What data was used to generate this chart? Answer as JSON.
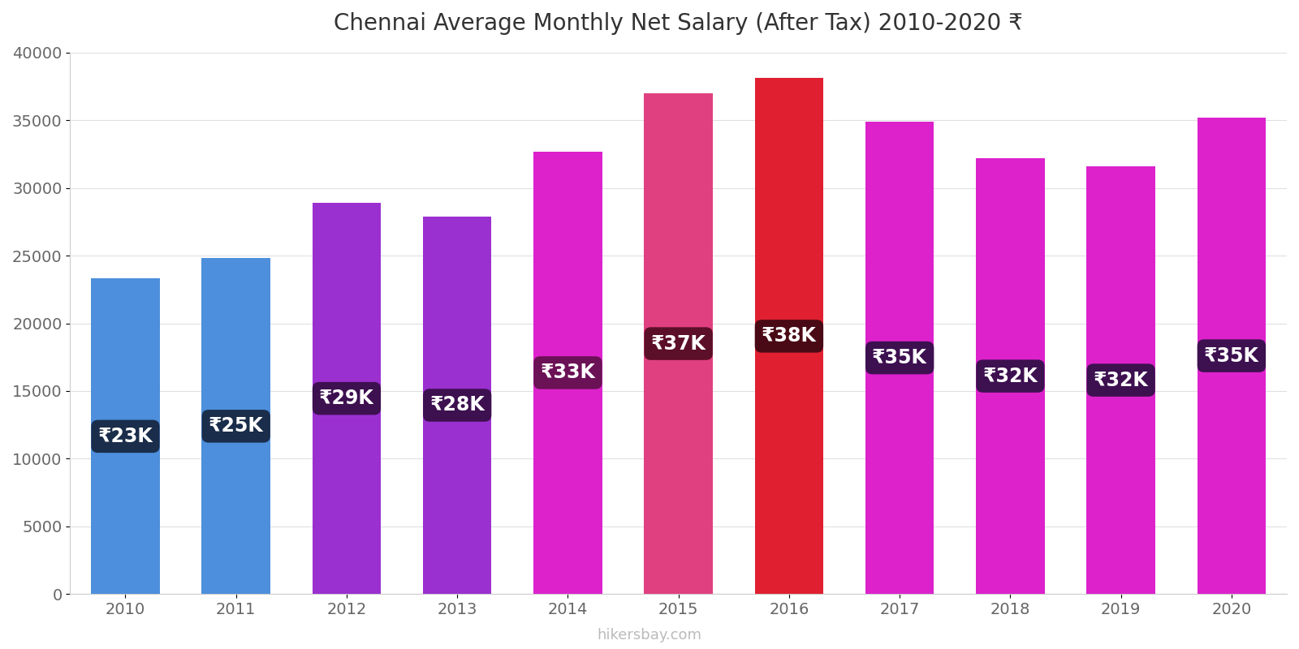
{
  "years": [
    2010,
    2011,
    2012,
    2013,
    2014,
    2015,
    2016,
    2017,
    2018,
    2019,
    2020
  ],
  "values": [
    23300,
    24800,
    28900,
    27900,
    32700,
    37000,
    38100,
    34900,
    32200,
    31600,
    35200
  ],
  "labels": [
    "₹23K",
    "₹25K",
    "₹29K",
    "₹28K",
    "₹33K",
    "₹37K",
    "₹38K",
    "₹35K",
    "₹32K",
    "₹32K",
    "₹35K"
  ],
  "bar_colors": [
    "#4d8fdc",
    "#4d8fdc",
    "#9b30d0",
    "#9b30d0",
    "#dd22cc",
    "#e04080",
    "#e02030",
    "#dd22cc",
    "#dd22cc",
    "#dd22cc",
    "#dd22cc"
  ],
  "label_bg_colors": [
    "#1a2d4a",
    "#1a2d4a",
    "#3d1050",
    "#3d1050",
    "#6b1155",
    "#5c0f28",
    "#4a0a15",
    "#3d1050",
    "#3d1050",
    "#3d1050",
    "#3d1050"
  ],
  "title": "Chennai Average Monthly Net Salary (After Tax) 2010-2020 ₹",
  "ylim": [
    0,
    40000
  ],
  "yticks": [
    0,
    5000,
    10000,
    15000,
    20000,
    25000,
    30000,
    35000,
    40000
  ],
  "background_color": "#ffffff",
  "watermark": "hikersbay.com",
  "title_fontsize": 20,
  "label_fontsize": 17,
  "tick_fontsize": 14,
  "bar_width": 0.62
}
